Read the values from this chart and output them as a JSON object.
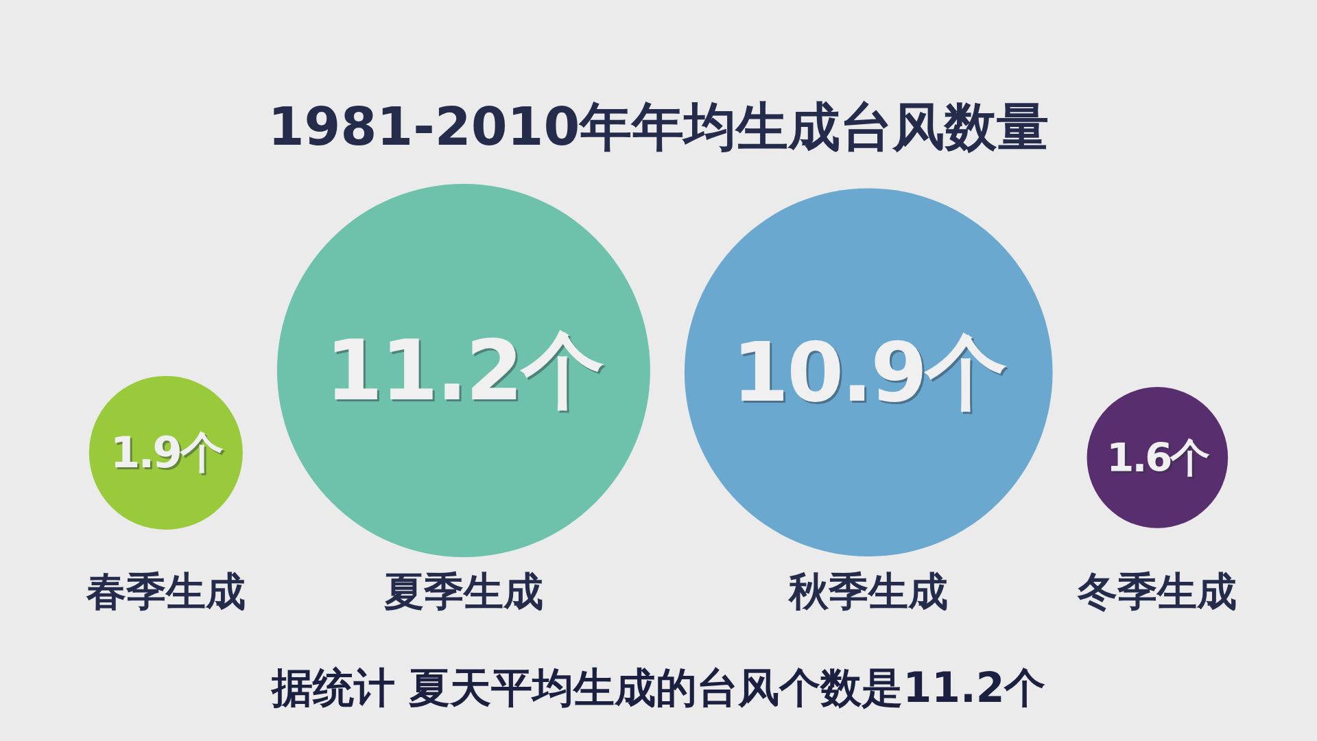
{
  "chart_data": {
    "type": "other",
    "title": "1981-2010年年均生成台风数量",
    "categories": [
      "春季生成",
      "夏季生成",
      "秋季生成",
      "冬季生成"
    ],
    "values": [
      1.9,
      11.2,
      10.9,
      1.6
    ],
    "colors": [
      "#98ca3c",
      "#6ec1ab",
      "#6aa8cf",
      "#582e6e"
    ],
    "value_labels": [
      "1.9个",
      "11.2个",
      "10.9个",
      "1.6个"
    ],
    "annotations": [
      "据统计 夏天平均生成的台风个数是11.2个"
    ]
  }
}
